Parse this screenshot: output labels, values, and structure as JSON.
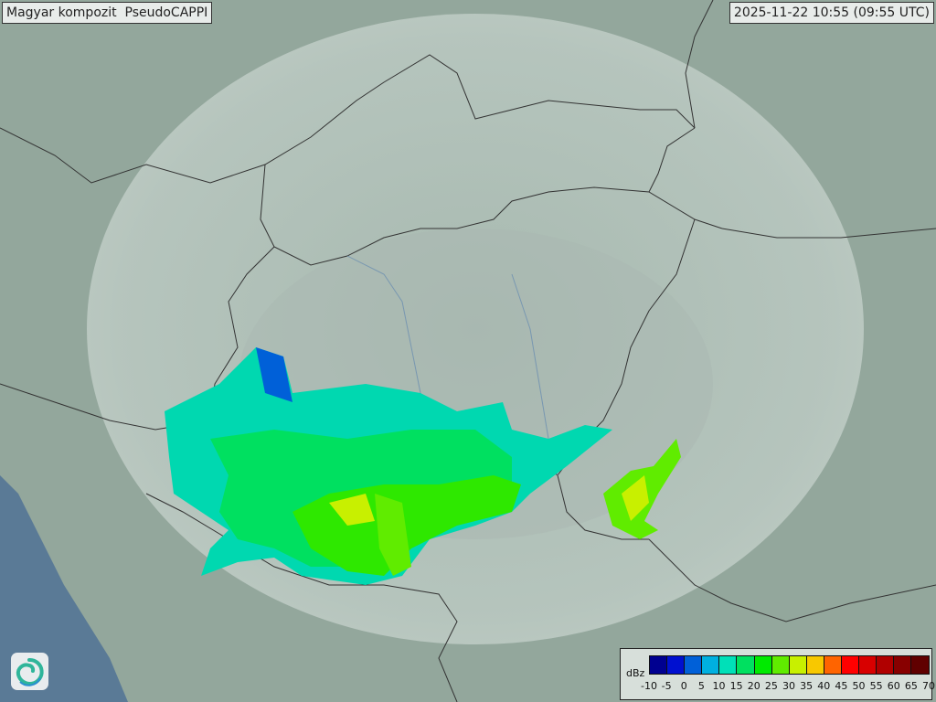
{
  "header": {
    "title": "Magyar kompozit  PseudoCAPPI",
    "timestamp": "2025-11-22 10:55 (09:55 UTC)"
  },
  "legend": {
    "unit": "dBz",
    "ticks": [
      "-10",
      "-5",
      "0",
      "5",
      "10",
      "15",
      "20",
      "25",
      "30",
      "35",
      "40",
      "45",
      "50",
      "55",
      "60",
      "65",
      "70"
    ],
    "colors": [
      "#000090",
      "#0010d0",
      "#0060d8",
      "#00b0e0",
      "#00e0b8",
      "#00e060",
      "#00ea00",
      "#60ec00",
      "#c8f000",
      "#f8c800",
      "#ff6400",
      "#ff0000",
      "#d80000",
      "#b00000",
      "#880000",
      "#600000"
    ]
  },
  "map": {
    "land_color": "#93a79c",
    "sea_color": "#5a7a96",
    "coverage_color": "#c9d6d0",
    "border_color": "#333333"
  },
  "logo": {
    "icon": "swirl-logo-icon"
  }
}
